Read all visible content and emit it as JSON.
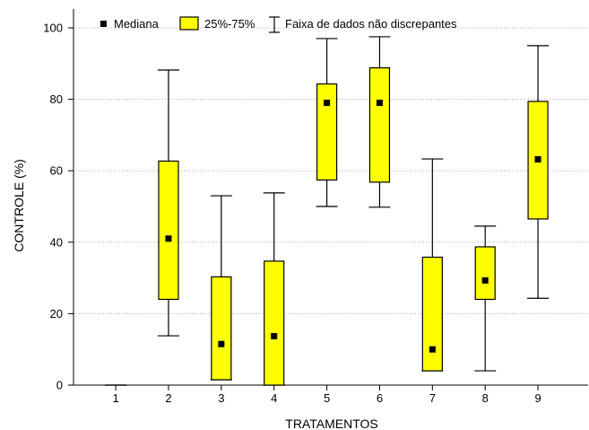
{
  "chart_data": {
    "type": "boxplot",
    "title": "",
    "xlabel": "TRATAMENTOS",
    "ylabel": "CONTROLE (%)",
    "ylim": [
      0,
      100
    ],
    "yticks": [
      0,
      20,
      40,
      60,
      80,
      100
    ],
    "grid": "horizontal-dotted",
    "legend_placement": "top",
    "legend": {
      "median": "Mediana",
      "box": "25%-75%",
      "whisker": "Faixa de dados não discrepantes"
    },
    "colors": {
      "box_fill": "#ffff00",
      "line": "#000000",
      "grid": "#b0b0b0"
    },
    "categories": [
      "1",
      "2",
      "3",
      "4",
      "5",
      "6",
      "7",
      "8",
      "9"
    ],
    "boxes": [
      {
        "category": "1",
        "min": 0,
        "q1": 0,
        "median": 0,
        "q3": 0,
        "max": 0
      },
      {
        "category": "2",
        "min": 13.8,
        "q1": 24,
        "median": 41,
        "q3": 62.7,
        "max": 88.2
      },
      {
        "category": "3",
        "min": 1.5,
        "q1": 1.5,
        "median": 11.5,
        "q3": 30.3,
        "max": 53
      },
      {
        "category": "4",
        "min": 0,
        "q1": 0,
        "median": 13.7,
        "q3": 34.7,
        "max": 53.8
      },
      {
        "category": "5",
        "min": 50,
        "q1": 57.4,
        "median": 79,
        "q3": 84.3,
        "max": 97
      },
      {
        "category": "6",
        "min": 49.8,
        "q1": 56.8,
        "median": 79,
        "q3": 88.8,
        "max": 97.5
      },
      {
        "category": "7",
        "min": 4,
        "q1": 4,
        "median": 10,
        "q3": 35.8,
        "max": 63.3
      },
      {
        "category": "8",
        "min": 4,
        "q1": 24,
        "median": 29.3,
        "q3": 38.7,
        "max": 44.5
      },
      {
        "category": "9",
        "min": 24.3,
        "q1": 46.5,
        "median": 63.2,
        "q3": 79.4,
        "max": 95
      }
    ]
  }
}
